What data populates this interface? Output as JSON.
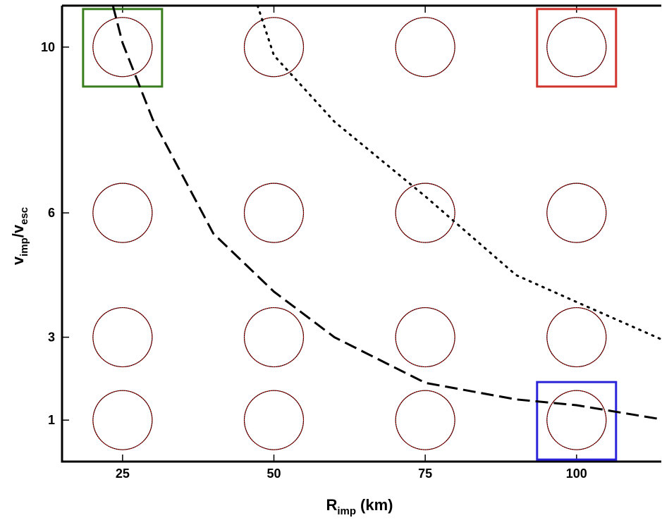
{
  "chart_data": {
    "type": "scatter",
    "x_label": {
      "main": "R",
      "sub": "imp",
      "unit": "(km)"
    },
    "y_label": {
      "main": "v",
      "sub": "imp",
      "main2": "/v",
      "sub2": "esc"
    },
    "xlim": [
      15,
      114
    ],
    "ylim": [
      0,
      11
    ],
    "xticks": [
      25,
      50,
      75,
      100
    ],
    "yticks": [
      1,
      3,
      6,
      10
    ],
    "points": {
      "x": [
        25,
        50,
        75,
        100,
        25,
        50,
        75,
        100,
        25,
        50,
        75,
        100,
        25,
        50,
        75,
        100
      ],
      "y": [
        10,
        10,
        10,
        10,
        6,
        6,
        6,
        6,
        3,
        3,
        3,
        3,
        1,
        1,
        1,
        1
      ],
      "box": [
        "#3a7d1e",
        null,
        null,
        "#d0342c",
        null,
        null,
        null,
        null,
        null,
        null,
        null,
        null,
        null,
        null,
        null,
        "#2a24d8"
      ]
    },
    "curves": [
      {
        "style": "dashed",
        "x": [
          23.4,
          25,
          30,
          40,
          50,
          60,
          75,
          90,
          100,
          114
        ],
        "y": [
          11,
          10.1,
          8.25,
          5.5,
          4.1,
          3.0,
          1.9,
          1.5,
          1.36,
          1.02
        ]
      },
      {
        "style": "dotted",
        "x": [
          47.3,
          50,
          60,
          75,
          90,
          100,
          114
        ],
        "y": [
          11,
          9.8,
          8.2,
          6.4,
          4.5,
          3.85,
          2.95
        ]
      }
    ]
  }
}
